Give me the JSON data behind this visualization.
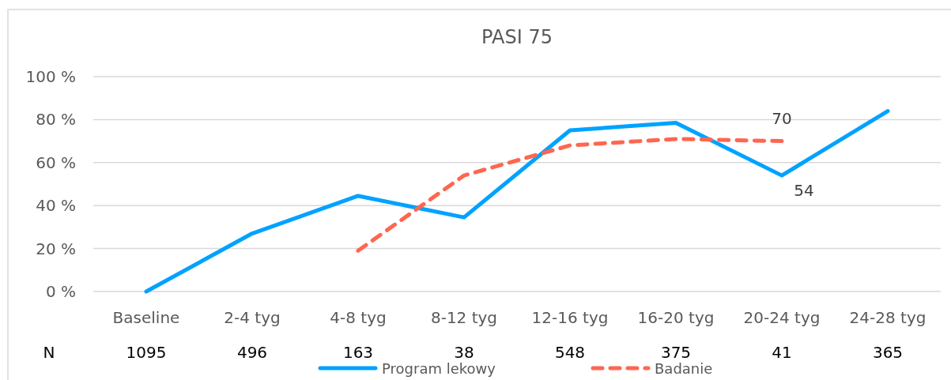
{
  "chart_data": {
    "type": "line",
    "title": "PASI 75",
    "categories": [
      "Baseline",
      "2-4 tyg",
      "4-8 tyg",
      "8-12 tyg",
      "12-16 tyg",
      "16-20 tyg",
      "20-24 tyg",
      "24-28 tyg"
    ],
    "series": [
      {
        "name": "Program lekowy",
        "color": "#00a2ff",
        "line_style": "solid",
        "values": [
          0,
          27,
          44.5,
          34.5,
          75,
          78.5,
          54,
          84
        ],
        "value_labels": [
          null,
          null,
          null,
          null,
          null,
          null,
          "54",
          null
        ]
      },
      {
        "name": "Badanie",
        "color": "#ff6650",
        "line_style": "dashed",
        "values": [
          null,
          null,
          19,
          54,
          68,
          71,
          70,
          null
        ],
        "value_labels": [
          null,
          null,
          null,
          null,
          null,
          null,
          "70",
          null
        ]
      }
    ],
    "ylim": [
      0,
      100
    ],
    "yticks": [
      {
        "value": 0,
        "label": "0 %"
      },
      {
        "value": 20,
        "label": "20 %"
      },
      {
        "value": 40,
        "label": "40 %"
      },
      {
        "value": 60,
        "label": "60 %"
      },
      {
        "value": 80,
        "label": "80 %"
      },
      {
        "value": 100,
        "label": "100 %"
      }
    ],
    "grid": "y",
    "legend": "bottom",
    "marker": "none",
    "annotations": [
      "N",
      "1095",
      "496",
      "163",
      "38",
      "548",
      "375",
      "41",
      "365"
    ]
  }
}
